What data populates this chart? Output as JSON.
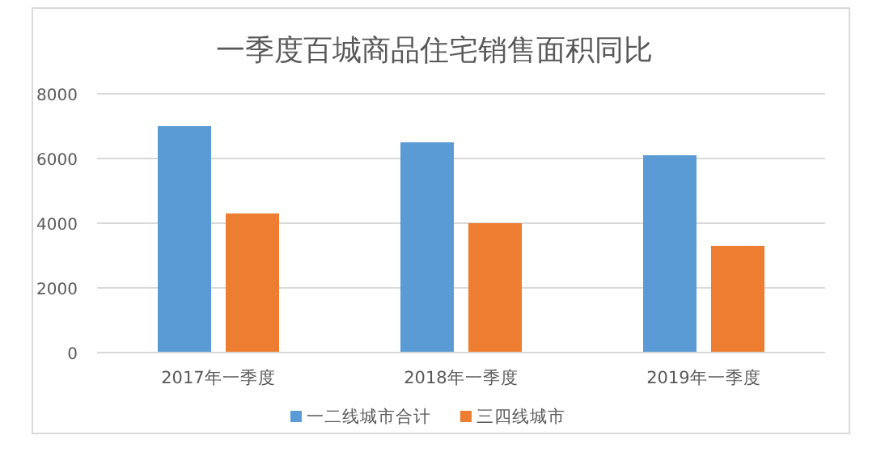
{
  "chart_data": {
    "type": "bar",
    "title": "一季度百城商品住宅销售面积同比",
    "categories": [
      "2017年一季度",
      "2018年一季度",
      "2019年一季度"
    ],
    "series": [
      {
        "name": "一二线城市合计",
        "color": "#5b9bd5",
        "values": [
          7000,
          6500,
          6100
        ]
      },
      {
        "name": "三四线城市",
        "color": "#ed7d31",
        "values": [
          4300,
          4000,
          3300
        ]
      }
    ],
    "ylim": [
      0,
      8000
    ],
    "yticks": [
      0,
      2000,
      4000,
      6000,
      8000
    ],
    "grid": "y",
    "legend": "bottom"
  }
}
